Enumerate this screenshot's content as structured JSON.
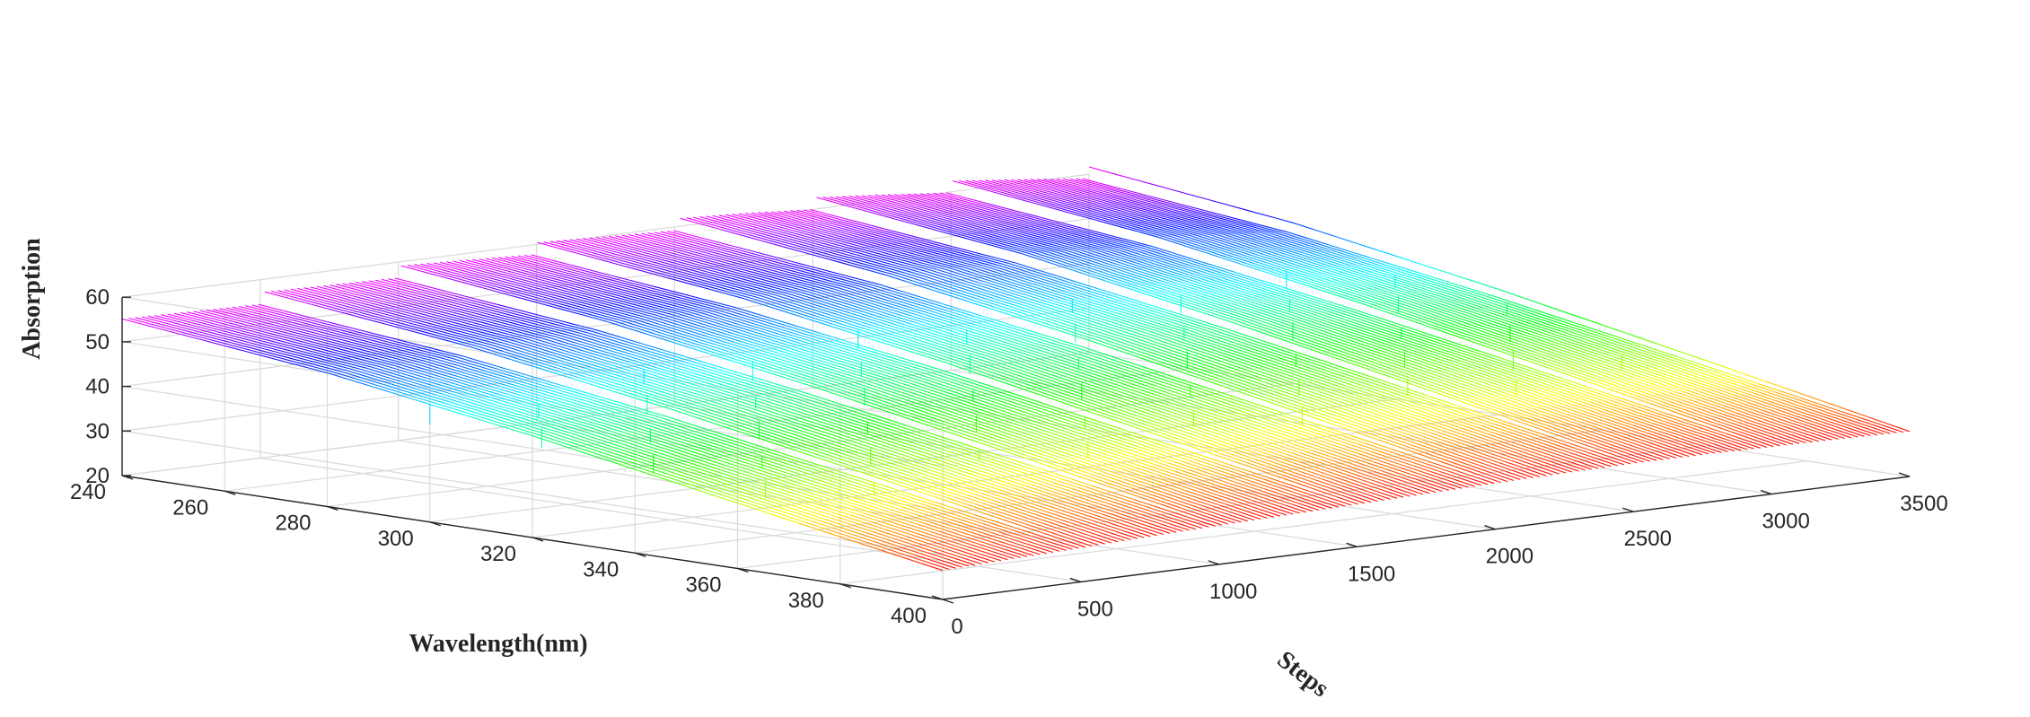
{
  "chart_data": {
    "type": "waterfall-3d",
    "title": "",
    "xlabel": "Steps",
    "ylabel": "Wavelength(nm)",
    "zlabel": "Absorption",
    "xlim": [
      0,
      3500
    ],
    "ylim": [
      240,
      400
    ],
    "zlim": [
      20,
      60
    ],
    "x_ticks": [
      "0",
      "500",
      "1000",
      "1500",
      "2000",
      "2500",
      "3000",
      "3500"
    ],
    "y_ticks": [
      "240",
      "260",
      "280",
      "300",
      "320",
      "340",
      "360",
      "380",
      "400"
    ],
    "z_ticks": [
      "20",
      "30",
      "40",
      "50",
      "60"
    ],
    "grid": true,
    "colormap": "hsv (magenta at 240 nm to red at 400 nm)",
    "colors": [
      "#ff00ff",
      "#0000ff",
      "#00ffff",
      "#00ff00",
      "#ffff00",
      "#ff0000"
    ],
    "series": [
      {
        "wavelength": 240,
        "steps": [
          0,
          250,
          500,
          750,
          1000,
          1250,
          1500,
          1750,
          2000,
          2250,
          2500,
          2750,
          3000,
          3250,
          3500
        ],
        "absorption": [
          52.5,
          53.5,
          54.5,
          55.5,
          56.5,
          57.2,
          57.8,
          58.5,
          59.2,
          59.8,
          60.0,
          60.0,
          59.8,
          59.5,
          59.0
        ]
      },
      {
        "wavelength": 280,
        "steps": [
          0,
          250,
          500,
          750,
          1000,
          1250,
          1500,
          1750,
          2000,
          2250,
          2500,
          2750,
          3000,
          3250,
          3500
        ],
        "absorption": [
          48.0,
          48.9,
          49.8,
          50.7,
          51.6,
          52.3,
          52.9,
          53.5,
          54.1,
          54.7,
          55.0,
          55.0,
          54.8,
          54.5,
          54.0
        ]
      },
      {
        "wavelength": 320,
        "steps": [
          0,
          250,
          500,
          750,
          1000,
          1250,
          1500,
          1750,
          2000,
          2250,
          2500,
          2750,
          3000,
          3250,
          3500
        ],
        "absorption": [
          41.5,
          42.3,
          43.1,
          43.9,
          44.7,
          45.3,
          45.9,
          46.4,
          46.9,
          47.4,
          47.6,
          47.6,
          47.4,
          47.1,
          46.7
        ]
      },
      {
        "wavelength": 360,
        "steps": [
          0,
          250,
          500,
          750,
          1000,
          1250,
          1500,
          1750,
          2000,
          2250,
          2500,
          2750,
          3000,
          3250,
          3500
        ],
        "absorption": [
          34.0,
          34.7,
          35.4,
          36.1,
          36.8,
          37.3,
          37.8,
          38.2,
          38.7,
          39.1,
          39.3,
          39.3,
          39.1,
          38.9,
          38.5
        ]
      },
      {
        "wavelength": 400,
        "steps": [
          0,
          250,
          500,
          750,
          1000,
          1250,
          1500,
          1750,
          2000,
          2250,
          2500,
          2750,
          3000,
          3250,
          3500
        ],
        "absorption": [
          26.5,
          27.1,
          27.6,
          28.2,
          28.7,
          29.1,
          29.5,
          29.9,
          30.3,
          30.6,
          30.8,
          30.8,
          30.6,
          30.4,
          30.1
        ]
      }
    ]
  }
}
